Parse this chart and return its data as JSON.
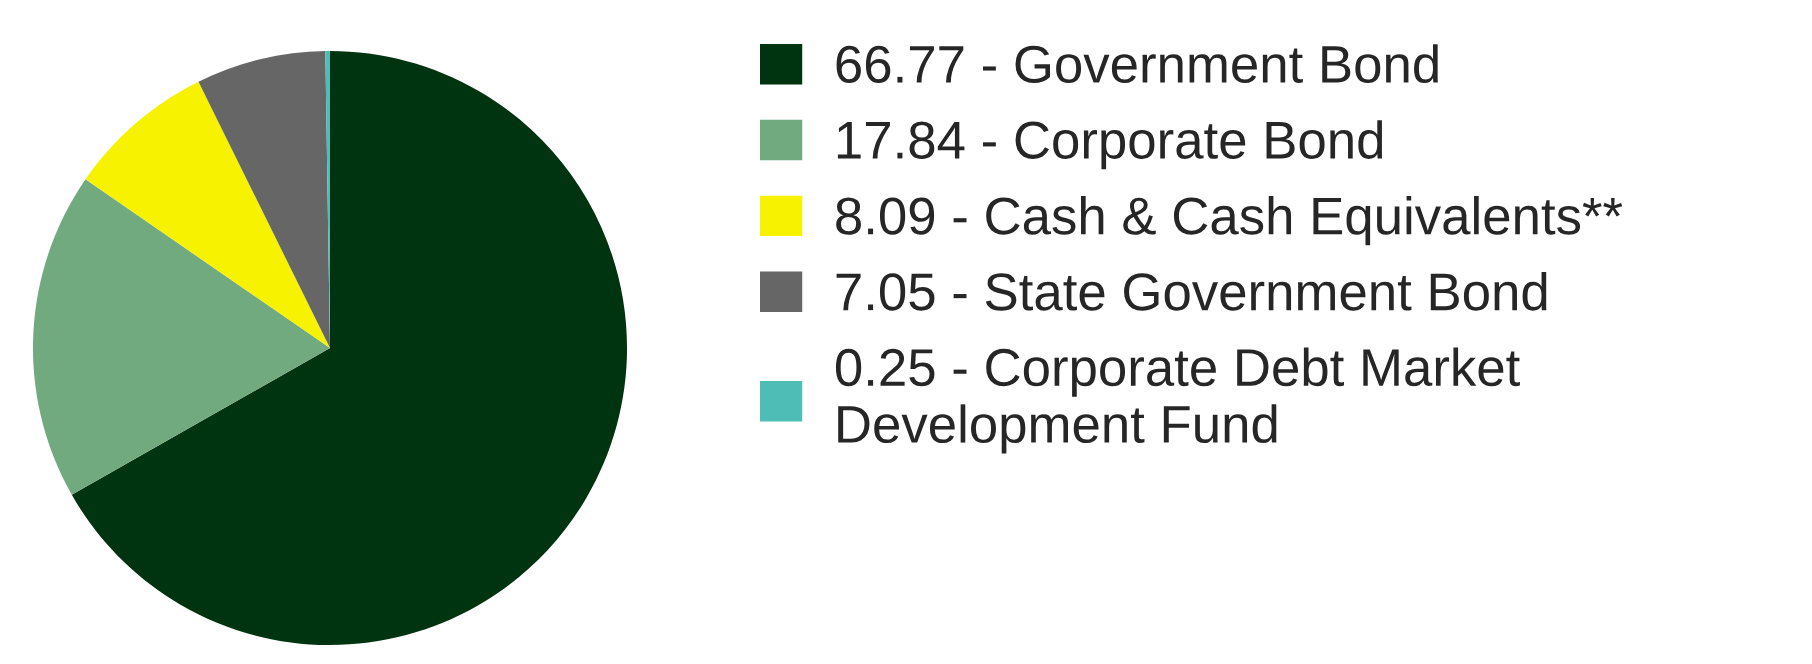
{
  "chart_data": {
    "type": "pie",
    "categories": [
      "66.77 - Government Bond",
      "17.84 - Corporate Bond",
      "8.09 - Cash & Cash Equivalents**",
      "7.05 - State Government Bond",
      "0.25 - Corporate Debt Market\nDevelopment Fund"
    ],
    "values": [
      66.77,
      17.84,
      8.09,
      7.05,
      0.25
    ],
    "colors": [
      "#00330f",
      "#72aa80",
      "#f7f200",
      "#666666",
      "#4dbdb5"
    ],
    "legend": "right"
  }
}
